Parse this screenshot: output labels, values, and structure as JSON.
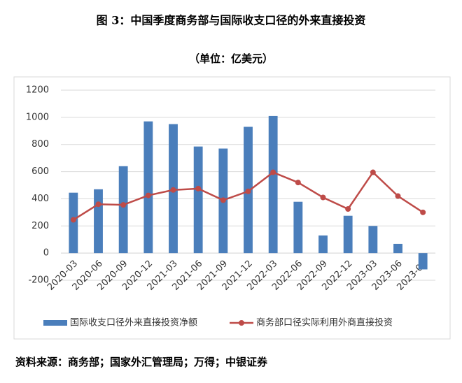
{
  "chart_data": {
    "type": "combo",
    "title": "图 3：中国季度商务部与国际收支口径的外来直接投资",
    "subtitle": "（单位：亿美元）",
    "source": "资料来源：商务部；国家外汇管理局；万得；中银证券",
    "categories": [
      "2020-03",
      "2020-06",
      "2020-09",
      "2020-12",
      "2021-03",
      "2021-06",
      "2021-09",
      "2021-12",
      "2022-03",
      "2022-06",
      "2022-09",
      "2022-12",
      "2023-03",
      "2023-06",
      "2023-09"
    ],
    "series": [
      {
        "name": "国际收支口径外来直接投资净额",
        "type": "bar",
        "color": "#4a7ebb",
        "values": [
          445,
          470,
          640,
          970,
          950,
          785,
          770,
          930,
          1010,
          378,
          130,
          275,
          200,
          68,
          -120
        ]
      },
      {
        "name": "商务部口径实际利用外商直接投资",
        "type": "line",
        "color": "#be4b48",
        "values": [
          245,
          360,
          355,
          425,
          465,
          475,
          390,
          455,
          595,
          520,
          410,
          325,
          595,
          420,
          300
        ]
      }
    ],
    "ylim": [
      -200,
      1200
    ],
    "yticks": [
      -200,
      0,
      200,
      400,
      600,
      800,
      1000,
      1200
    ],
    "grid": true,
    "legend": "bottom"
  }
}
